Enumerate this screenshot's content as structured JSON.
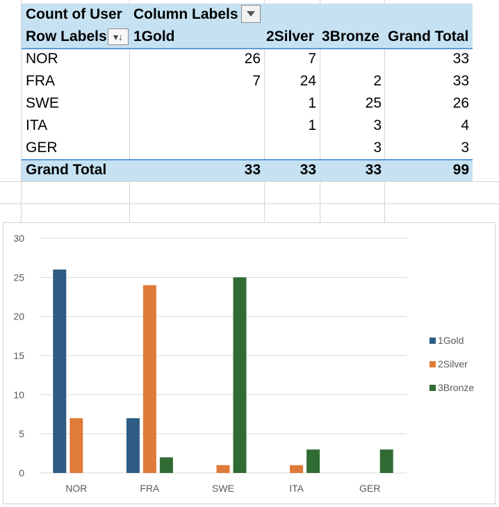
{
  "pivot": {
    "corner_label": "Count of User",
    "column_labels": "Column Labels",
    "row_labels": "Row Labels",
    "columns": [
      "1Gold",
      "2Silver",
      "3Bronze",
      "Grand Total"
    ],
    "rows": [
      {
        "label": "NOR",
        "values": [
          "26",
          "7",
          "",
          "33"
        ]
      },
      {
        "label": "FRA",
        "values": [
          "7",
          "24",
          "2",
          "33"
        ]
      },
      {
        "label": "SWE",
        "values": [
          "",
          "1",
          "25",
          "26"
        ]
      },
      {
        "label": "ITA",
        "values": [
          "",
          "1",
          "3",
          "4"
        ]
      },
      {
        "label": "GER",
        "values": [
          "",
          "",
          "3",
          "3"
        ]
      }
    ],
    "total": {
      "label": "Grand Total",
      "values": [
        "33",
        "33",
        "33",
        "99"
      ]
    }
  },
  "colors": {
    "header_fill": "#c6e2f2",
    "gold": "#2e5c82",
    "silver": "#e07b39",
    "bronze": "#306b34"
  },
  "chart_data": {
    "type": "bar",
    "categories": [
      "NOR",
      "FRA",
      "SWE",
      "ITA",
      "GER"
    ],
    "series": [
      {
        "name": "1Gold",
        "values": [
          26,
          7,
          0,
          0,
          0
        ]
      },
      {
        "name": "2Silver",
        "values": [
          7,
          24,
          1,
          1,
          0
        ]
      },
      {
        "name": "3Bronze",
        "values": [
          0,
          2,
          25,
          3,
          3
        ]
      }
    ],
    "yticks": [
      0,
      5,
      10,
      15,
      20,
      25,
      30
    ],
    "ylim": [
      0,
      30
    ],
    "title": "",
    "xlabel": "",
    "ylabel": "",
    "legend": "right"
  }
}
